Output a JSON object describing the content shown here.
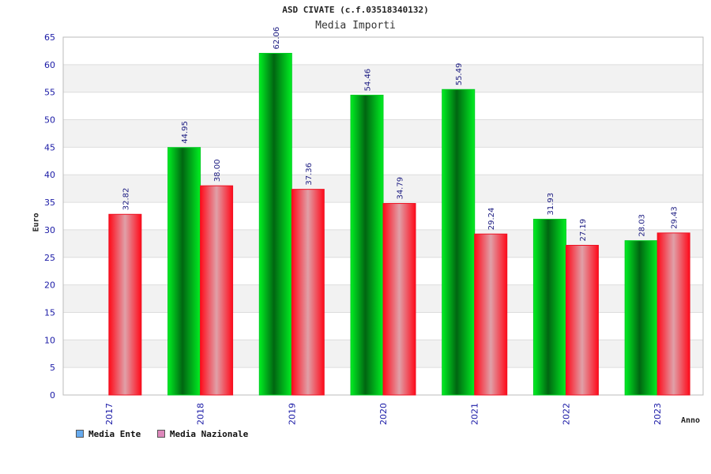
{
  "chart_data": {
    "type": "bar",
    "title": "ASD CIVATE (c.f.03518340132)",
    "subtitle": "Media Importi",
    "xlabel": "Anno",
    "ylabel": "Euro",
    "ylim": [
      0,
      65
    ],
    "yticks": [
      0,
      5,
      10,
      15,
      20,
      25,
      30,
      35,
      40,
      45,
      50,
      55,
      60,
      65
    ],
    "categories": [
      "2017",
      "2018",
      "2019",
      "2020",
      "2021",
      "2022",
      "2023"
    ],
    "series": [
      {
        "name": "Media Ente",
        "values": [
          null,
          44.95,
          62.06,
          54.46,
          55.49,
          31.93,
          28.03
        ],
        "labels": [
          "",
          "44.95",
          "62.06",
          "54.46",
          "55.49",
          "31.93",
          "28.03"
        ],
        "color": "#00cc22",
        "legend_color": "#66aaee"
      },
      {
        "name": "Media Nazionale",
        "values": [
          32.82,
          38.0,
          37.36,
          34.79,
          29.24,
          27.19,
          29.43
        ],
        "labels": [
          "32.82",
          "38.00",
          "37.36",
          "34.79",
          "29.24",
          "27.19",
          "29.43"
        ],
        "color": "#ee1122",
        "legend_color": "#dd88bb"
      }
    ],
    "grid": true,
    "legend_position": "bottom-left"
  }
}
